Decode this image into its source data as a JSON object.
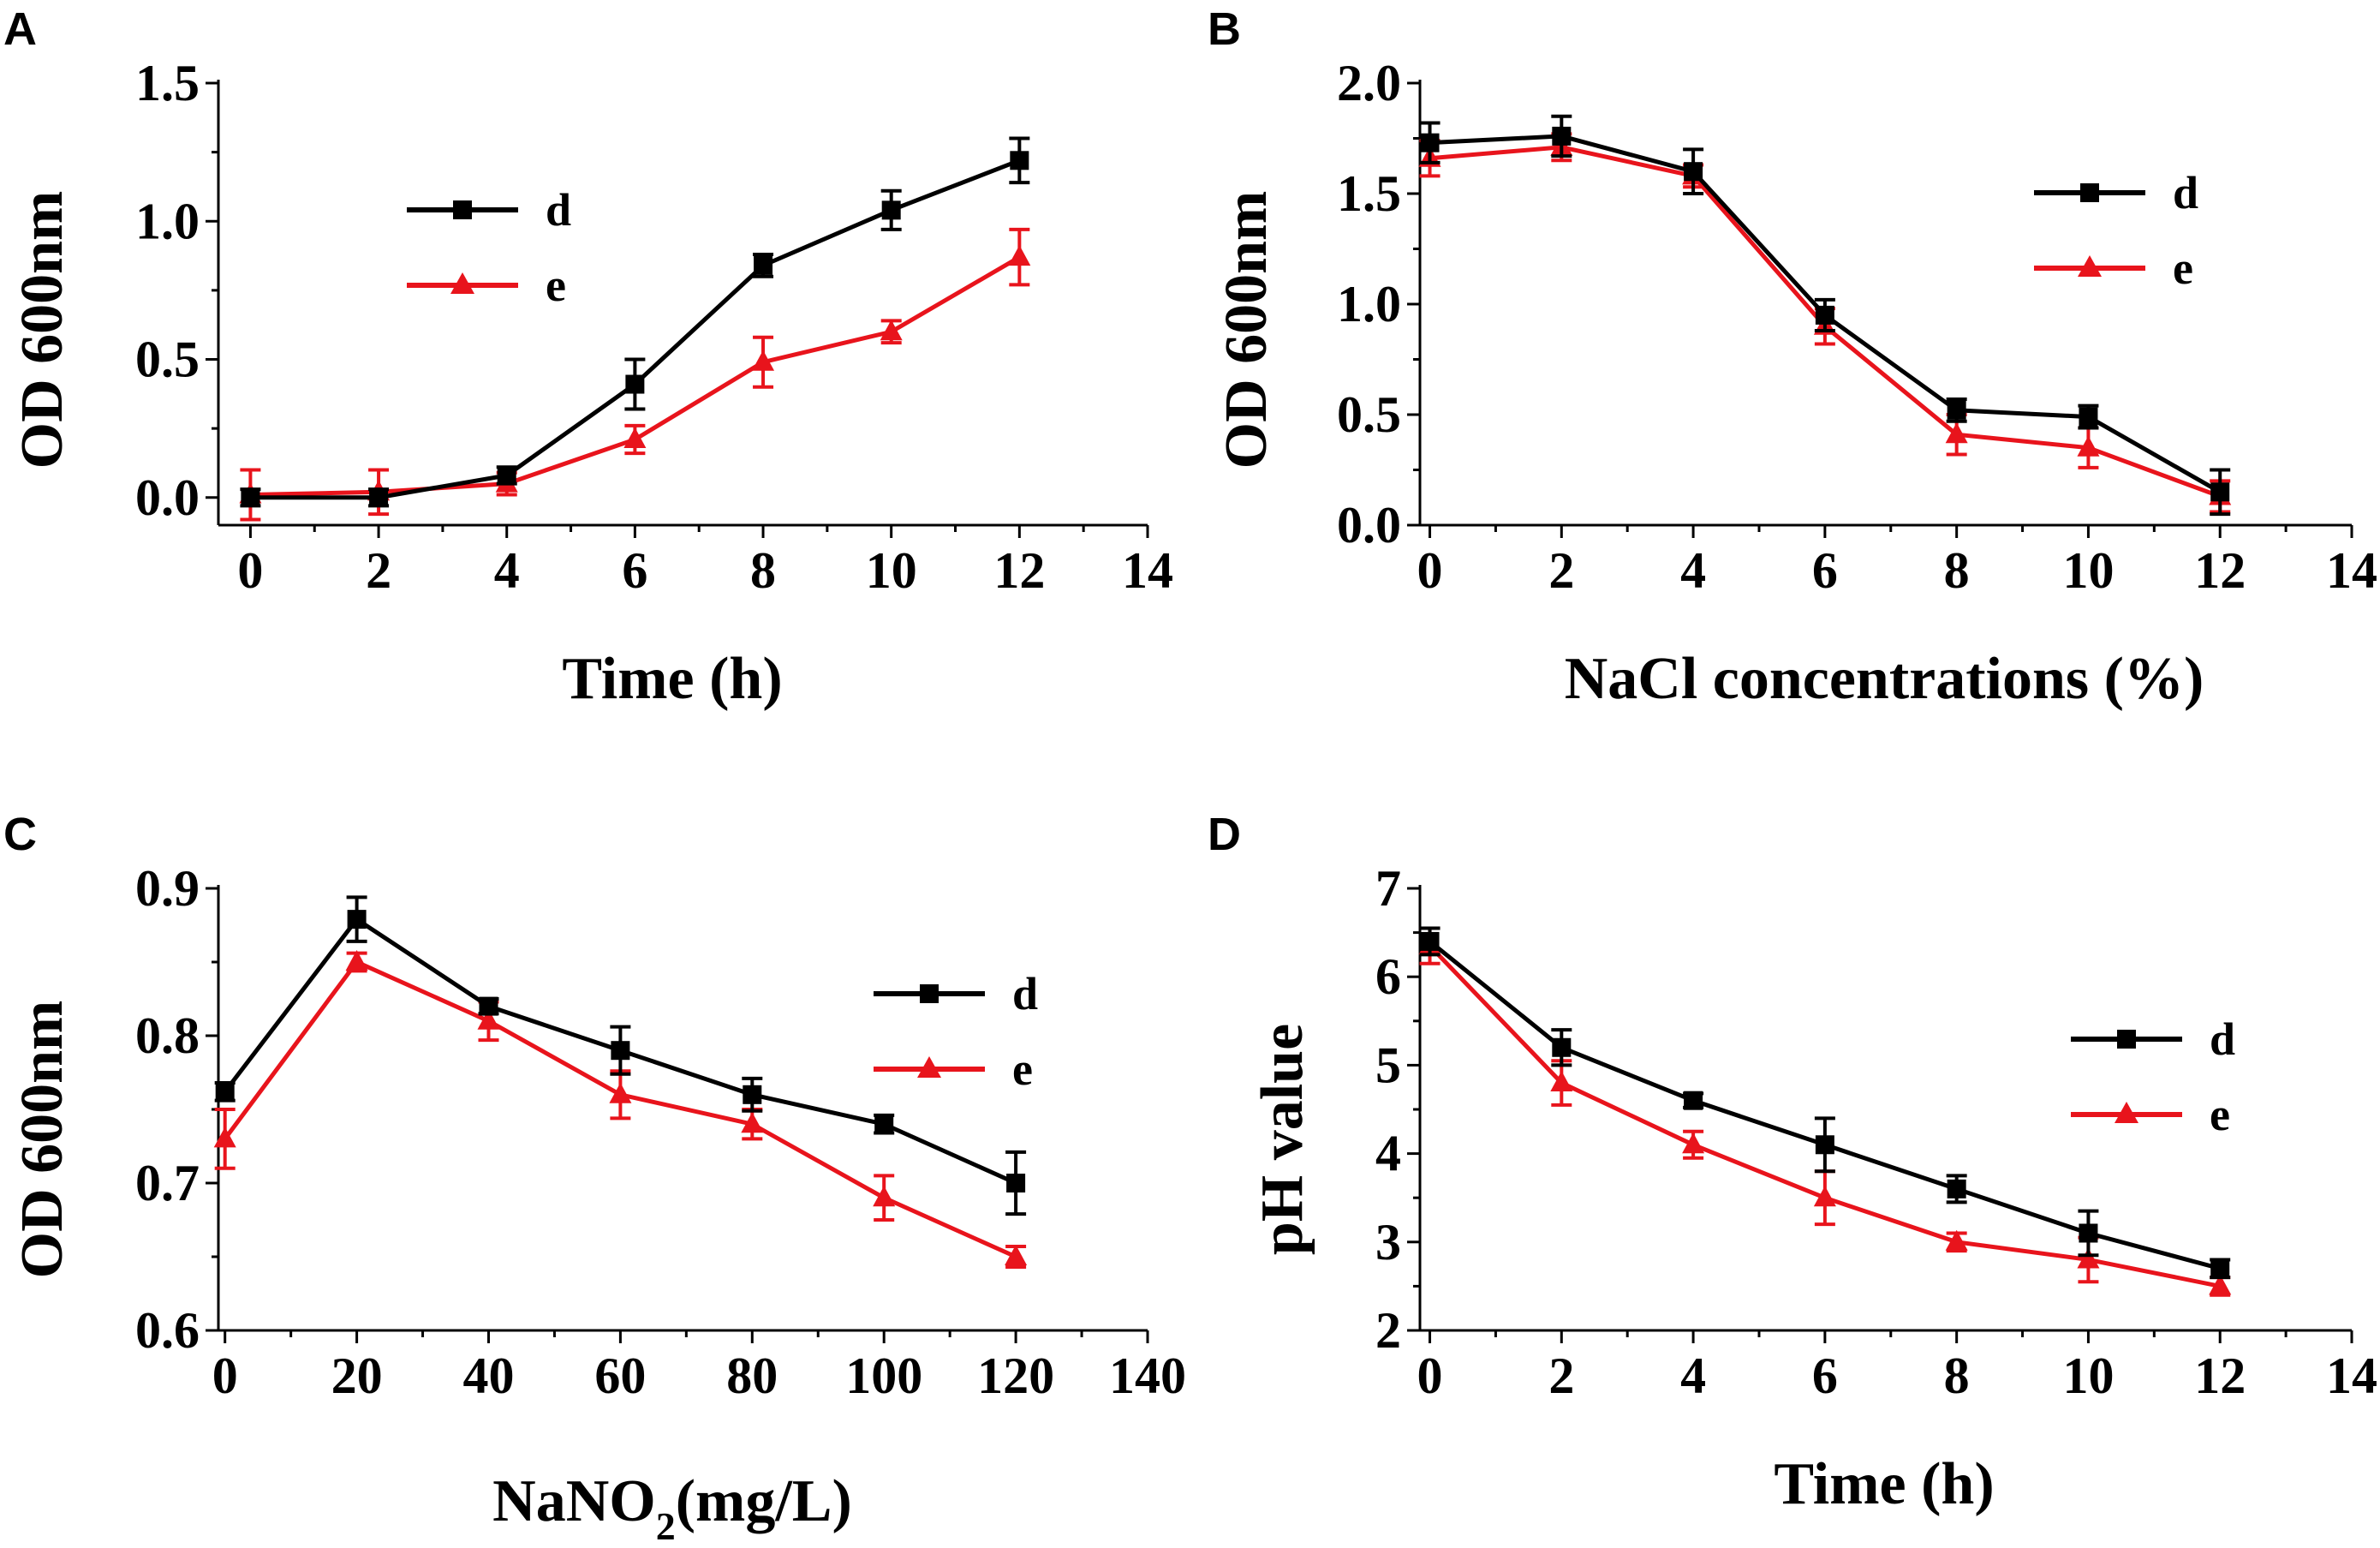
{
  "colors": {
    "d": "#000000",
    "e": "#e8141c"
  },
  "chart_data": [
    {
      "id": "A",
      "panel_label": "A",
      "type": "line",
      "xlabel": "Time (h)",
      "ylabel": "OD 600nm",
      "xlim": [
        -0.5,
        14
      ],
      "ylim": [
        -0.1,
        1.5
      ],
      "xticks": [
        0,
        2,
        4,
        6,
        8,
        10,
        12,
        14
      ],
      "xtick_labels": [
        "0",
        "2",
        "4",
        "6",
        "8",
        "10",
        "12",
        "14"
      ],
      "yticks": [
        0.0,
        0.5,
        1.0,
        1.5
      ],
      "ytick_labels": [
        "0.0",
        "0.5",
        "1.0",
        "1.5"
      ],
      "legend_position": "upper-left",
      "series": [
        {
          "name": "d",
          "marker": "square",
          "x": [
            0,
            2,
            4,
            6,
            8,
            10,
            12
          ],
          "y": [
            0.0,
            0.0,
            0.08,
            0.41,
            0.84,
            1.04,
            1.22
          ],
          "err": [
            0.03,
            0.03,
            0.03,
            0.09,
            0.04,
            0.07,
            0.08
          ]
        },
        {
          "name": "e",
          "marker": "triangle",
          "x": [
            0,
            2,
            4,
            6,
            8,
            10,
            12
          ],
          "y": [
            0.01,
            0.02,
            0.05,
            0.21,
            0.49,
            0.6,
            0.87
          ],
          "err": [
            0.09,
            0.08,
            0.04,
            0.05,
            0.09,
            0.04,
            0.1
          ]
        }
      ]
    },
    {
      "id": "B",
      "panel_label": "B",
      "type": "line",
      "xlabel": "NaCl concentrations (%)",
      "ylabel": "OD 600nm",
      "xlim": [
        -0.15,
        14
      ],
      "ylim": [
        0.0,
        2.0
      ],
      "xticks": [
        0,
        2,
        4,
        6,
        8,
        10,
        12,
        14
      ],
      "xtick_labels": [
        "0",
        "2",
        "4",
        "6",
        "8",
        "10",
        "12",
        "14"
      ],
      "yticks": [
        0.0,
        0.5,
        1.0,
        1.5,
        2.0
      ],
      "ytick_labels": [
        "0.0",
        "0.5",
        "1.0",
        "1.5",
        "2.0"
      ],
      "legend_position": "upper-right",
      "series": [
        {
          "name": "d",
          "marker": "square",
          "x": [
            0,
            2,
            4,
            6,
            8,
            10,
            12
          ],
          "y": [
            1.73,
            1.76,
            1.6,
            0.95,
            0.52,
            0.49,
            0.15
          ],
          "err": [
            0.09,
            0.09,
            0.1,
            0.07,
            0.05,
            0.05,
            0.1
          ]
        },
        {
          "name": "e",
          "marker": "triangle",
          "x": [
            0,
            2,
            4,
            6,
            8,
            10,
            12
          ],
          "y": [
            1.66,
            1.71,
            1.58,
            0.9,
            0.41,
            0.35,
            0.13
          ],
          "err": [
            0.08,
            0.06,
            0.05,
            0.08,
            0.09,
            0.09,
            0.07
          ]
        }
      ]
    },
    {
      "id": "C",
      "panel_label": "C",
      "type": "line",
      "xlabel": "NaNO",
      "xlabel_subscript": "2",
      "xlabel_suffix": "(mg/L)",
      "ylabel": "OD 600nm",
      "xlim": [
        -1,
        140
      ],
      "ylim": [
        0.6,
        0.9
      ],
      "xticks": [
        0,
        20,
        40,
        60,
        80,
        100,
        120,
        140
      ],
      "xtick_labels": [
        "0",
        "20",
        "40",
        "60",
        "80",
        "100",
        "120",
        "140"
      ],
      "yticks": [
        0.6,
        0.7,
        0.8,
        0.9
      ],
      "ytick_labels": [
        "0.6",
        "0.7",
        "0.8",
        "0.9"
      ],
      "legend_position": "upper-right",
      "series": [
        {
          "name": "d",
          "marker": "square",
          "x": [
            0,
            20,
            40,
            60,
            80,
            100,
            120
          ],
          "y": [
            0.762,
            0.879,
            0.82,
            0.79,
            0.76,
            0.74,
            0.7
          ],
          "err": [
            0.006,
            0.015,
            0.005,
            0.016,
            0.011,
            0.006,
            0.021
          ]
        },
        {
          "name": "e",
          "marker": "triangle",
          "x": [
            0,
            20,
            40,
            60,
            80,
            100,
            120
          ],
          "y": [
            0.73,
            0.85,
            0.81,
            0.76,
            0.74,
            0.69,
            0.65
          ],
          "err": [
            0.02,
            0.006,
            0.013,
            0.016,
            0.01,
            0.015,
            0.007
          ]
        }
      ]
    },
    {
      "id": "D",
      "panel_label": "D",
      "type": "line",
      "xlabel": "Time (h)",
      "ylabel": "pH  value",
      "xlim": [
        -0.15,
        14
      ],
      "ylim": [
        2,
        7
      ],
      "xticks": [
        0,
        2,
        4,
        6,
        8,
        10,
        12,
        14
      ],
      "xtick_labels": [
        "0",
        "2",
        "4",
        "6",
        "8",
        "10",
        "12",
        "14"
      ],
      "yticks": [
        2,
        3,
        4,
        5,
        6,
        7
      ],
      "ytick_labels": [
        "2",
        "3",
        "4",
        "5",
        "6",
        "7"
      ],
      "legend_position": "upper-right",
      "series": [
        {
          "name": "d",
          "marker": "square",
          "x": [
            0,
            2,
            4,
            6,
            8,
            10,
            12
          ],
          "y": [
            6.4,
            5.2,
            4.6,
            4.1,
            3.6,
            3.1,
            2.7
          ],
          "err": [
            0.15,
            0.2,
            0.08,
            0.3,
            0.15,
            0.25,
            0.1
          ]
        },
        {
          "name": "e",
          "marker": "triangle",
          "x": [
            0,
            2,
            4,
            6,
            8,
            10,
            12
          ],
          "y": [
            6.35,
            4.8,
            4.1,
            3.5,
            3.0,
            2.8,
            2.5
          ],
          "err": [
            0.2,
            0.25,
            0.15,
            0.3,
            0.1,
            0.25,
            0.1
          ]
        }
      ]
    }
  ]
}
